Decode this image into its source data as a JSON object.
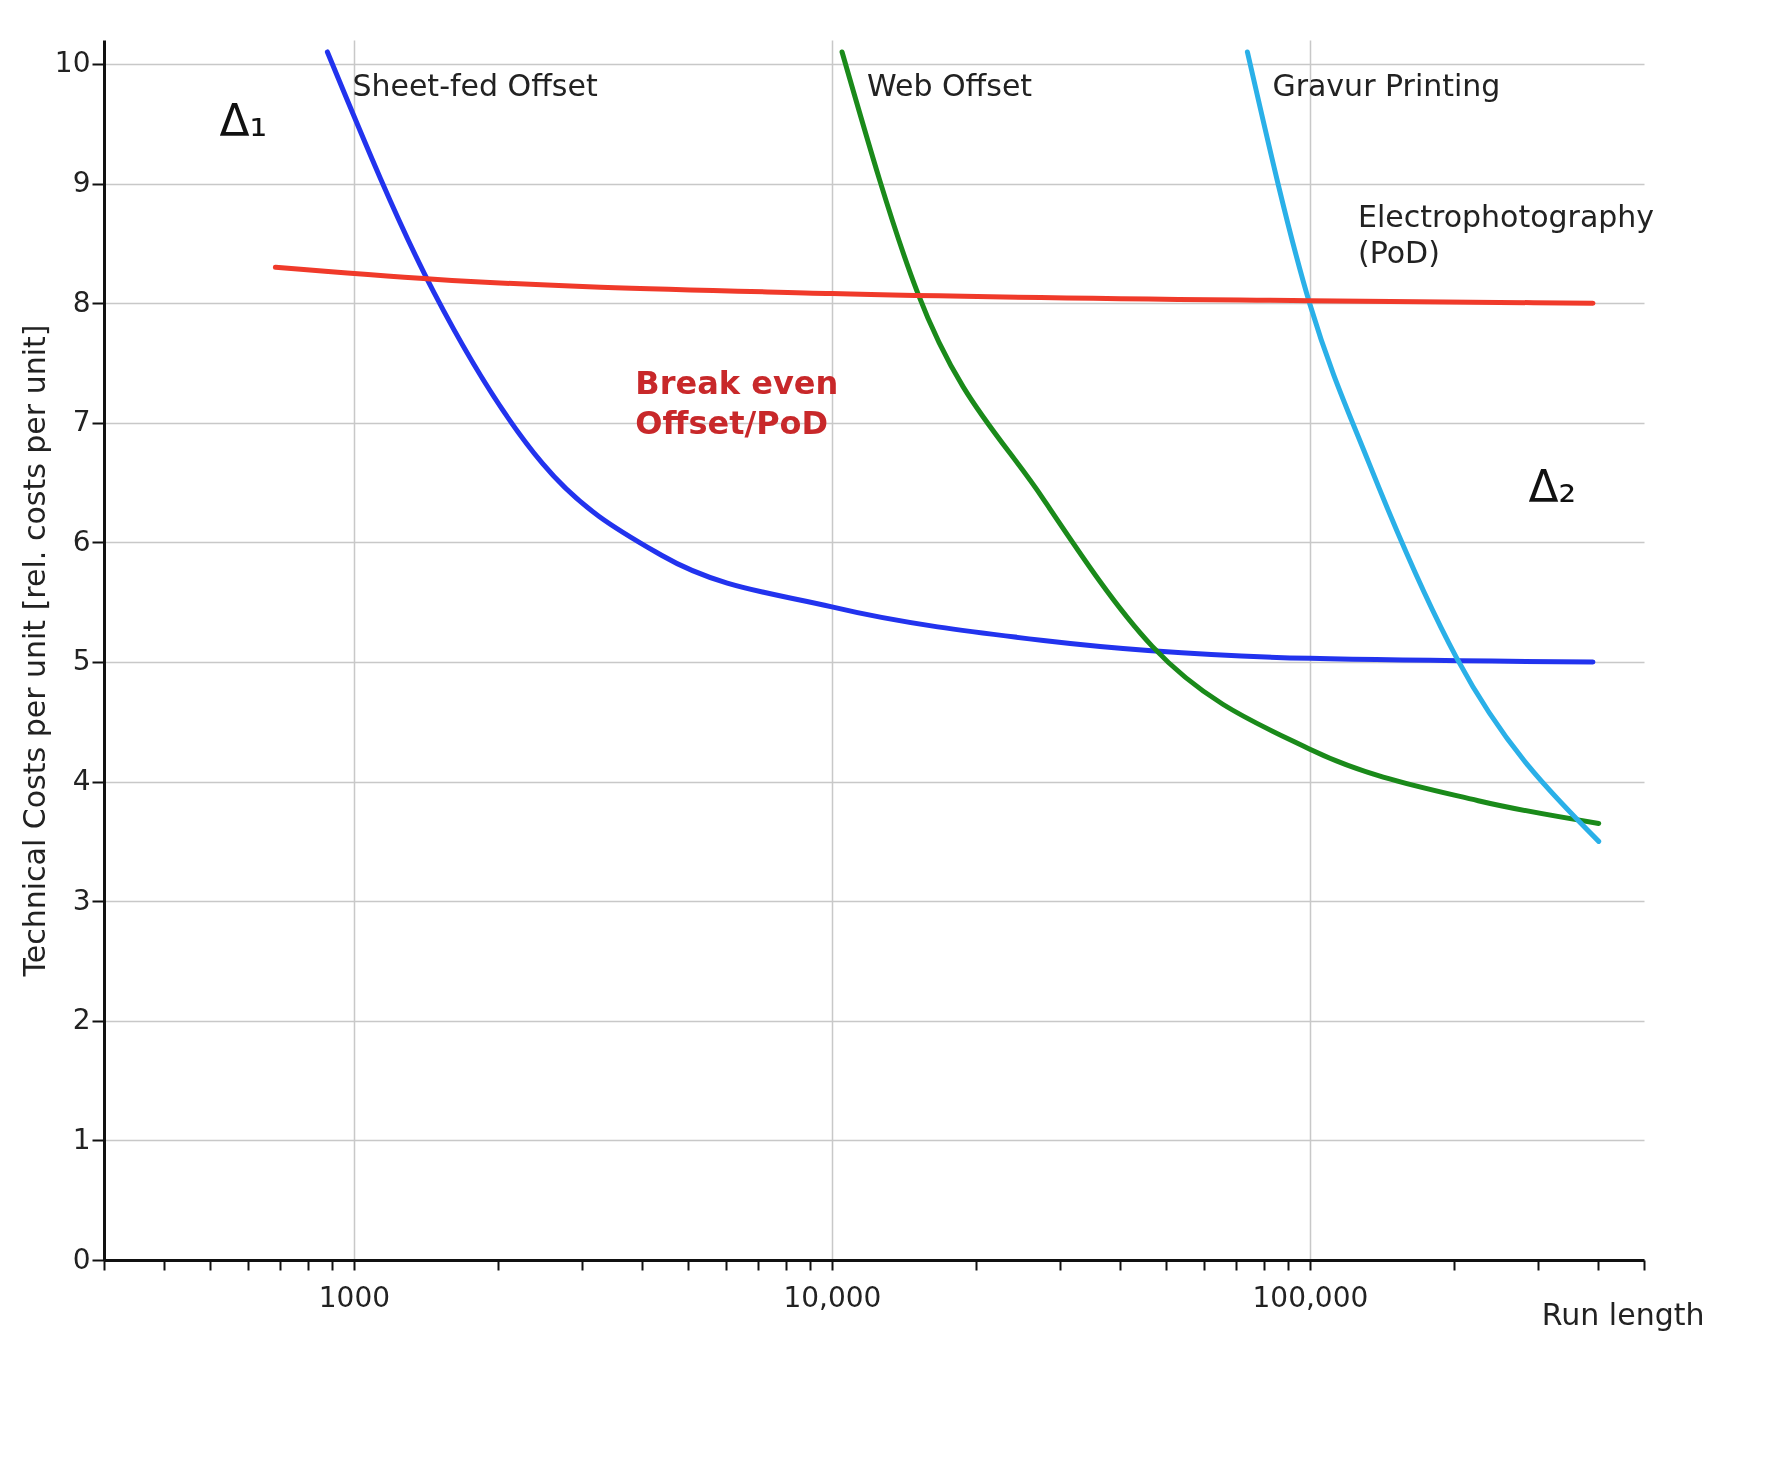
{
  "chart_data": {
    "type": "line",
    "xlabel": "Run length",
    "ylabel": "Technical Costs per unit [rel. costs per unit]",
    "log": "x",
    "grid": true,
    "xlim": [
      300,
      500000
    ],
    "ylim": [
      0,
      10.2
    ],
    "xticks": [
      {
        "value": 300,
        "label": null
      },
      {
        "value": 400,
        "label": null
      },
      {
        "value": 500,
        "label": null
      },
      {
        "value": 600,
        "label": null
      },
      {
        "value": 700,
        "label": null
      },
      {
        "value": 800,
        "label": null
      },
      {
        "value": 900,
        "label": null
      },
      1000,
      {
        "value": 2000,
        "label": null
      },
      {
        "value": 3000,
        "label": null
      },
      {
        "value": 4000,
        "label": null
      },
      {
        "value": 5000,
        "label": null
      },
      {
        "value": 6000,
        "label": null
      },
      {
        "value": 7000,
        "label": null
      },
      {
        "value": 8000,
        "label": null
      },
      {
        "value": 9000,
        "label": null
      },
      {
        "value": 10000,
        "label": "10,000"
      },
      {
        "value": 20000,
        "label": null
      },
      {
        "value": 30000,
        "label": null
      },
      {
        "value": 40000,
        "label": null
      },
      {
        "value": 50000,
        "label": null
      },
      {
        "value": 60000,
        "label": null
      },
      {
        "value": 70000,
        "label": null
      },
      {
        "value": 80000,
        "label": null
      },
      {
        "value": 90000,
        "label": null
      },
      {
        "value": 100000,
        "label": "100,000"
      },
      {
        "value": 200000,
        "label": null
      },
      {
        "value": 300000,
        "label": null
      },
      {
        "value": 400000,
        "label": null
      },
      {
        "value": 500000,
        "label": null
      }
    ],
    "yticks": [
      0,
      1,
      2,
      3,
      4,
      5,
      6,
      7,
      8,
      9,
      10
    ],
    "series": [
      {
        "name": "Sheet-fed Offset",
        "color": "#2233ee",
        "x": [
          880,
          1470,
          2480,
          4410,
          10000,
          27700,
          100000,
          391000
        ],
        "values": [
          10.1,
          8.09,
          6.66,
          5.89,
          5.46,
          5.18,
          5.03,
          5.0
        ]
      },
      {
        "name": "Web Offset",
        "color": "#1a8a1a",
        "x": [
          10500,
          15100,
          27600,
          46800,
          100000,
          225000,
          402000
        ],
        "values": [
          10.1,
          8.09,
          6.37,
          5.13,
          4.27,
          3.84,
          3.65
        ]
      },
      {
        "name": "Gravur Printing",
        "color": "#2ab0e8",
        "x": [
          74000,
          100000,
          133000,
          203000,
          402000
        ],
        "values": [
          10.1,
          7.99,
          6.66,
          5.03,
          3.5
        ]
      },
      {
        "name": "Electrophotography\n(PoD)",
        "color": "#f03a2a",
        "x": [
          685,
          1470,
          10000,
          100000,
          391000
        ],
        "values": [
          8.3,
          8.2,
          8.08,
          8.02,
          8.0
        ]
      }
    ],
    "annotations": [
      "Break even\nOffset/PoD",
      "Δ₁",
      "Δ₂"
    ]
  }
}
